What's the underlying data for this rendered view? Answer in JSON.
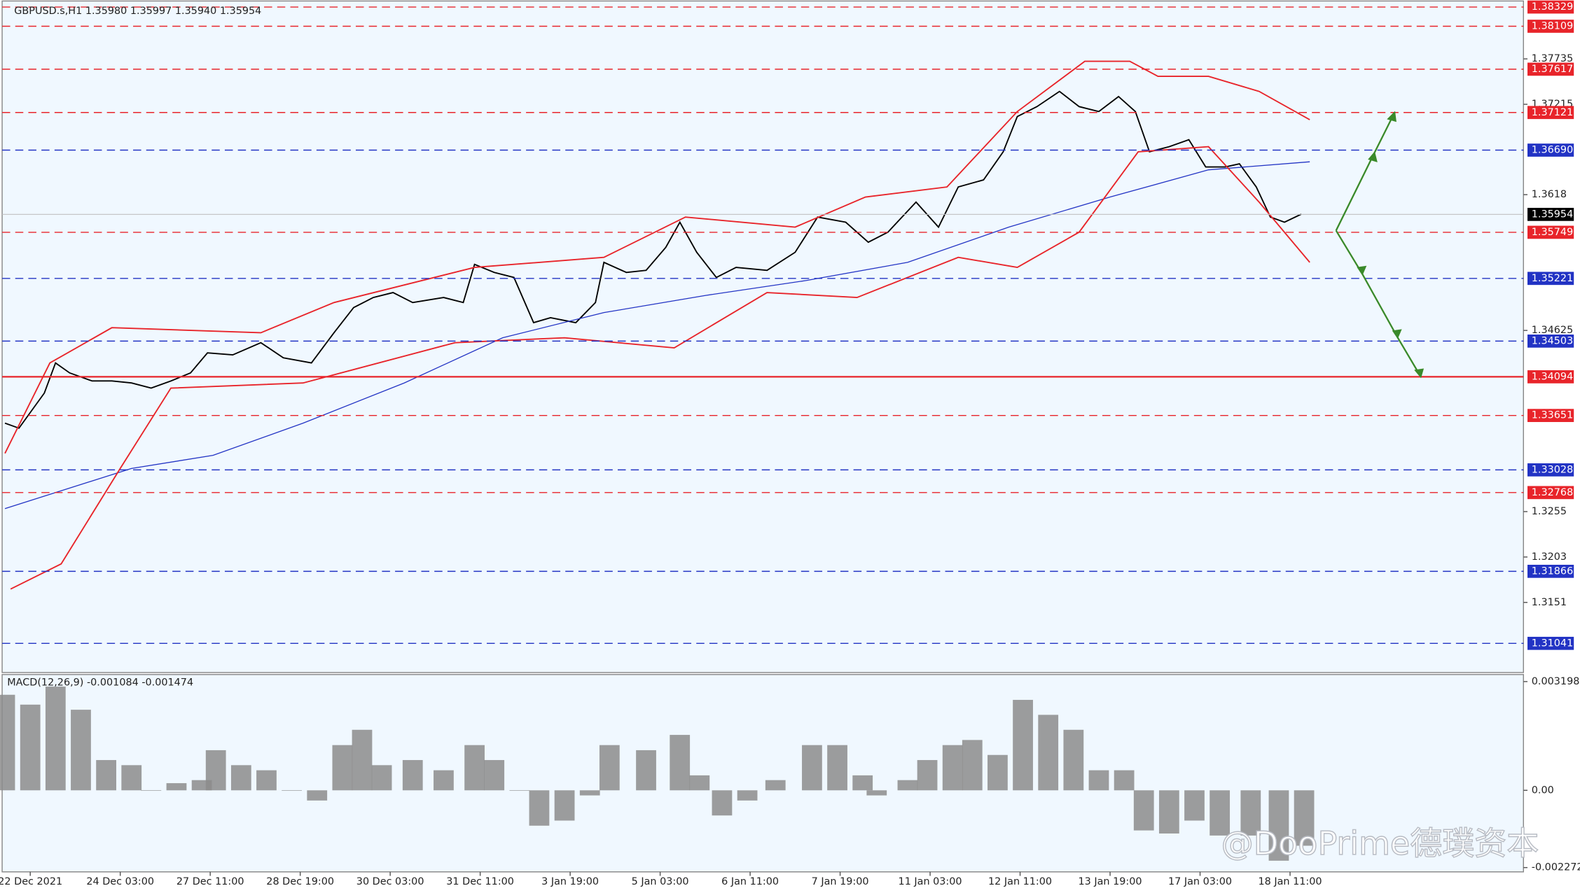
{
  "chart_data": [
    {
      "type": "line",
      "title": "GBPUSD.s,H1  1.35980 1.35997 1.35940 1.35954",
      "xlim": [
        0,
        541
      ],
      "xticks": [
        {
          "value": 10,
          "label": "22 Dec 2021"
        },
        {
          "value": 42,
          "label": "24 Dec 03:00"
        },
        {
          "value": 74,
          "label": "27 Dec 11:00"
        },
        {
          "value": 106,
          "label": "28 Dec 19:00"
        },
        {
          "value": 138,
          "label": "30 Dec 03:00"
        },
        {
          "value": 170,
          "label": "31 Dec 11:00"
        },
        {
          "value": 202,
          "label": "3 Jan 19:00"
        },
        {
          "value": 234,
          "label": "5 Jan 03:00"
        },
        {
          "value": 266,
          "label": "6 Jan 11:00"
        },
        {
          "value": 298,
          "label": "7 Jan 19:00"
        },
        {
          "value": 330,
          "label": "11 Jan 03:00"
        },
        {
          "value": 362,
          "label": "12 Jan 11:00"
        },
        {
          "value": 394,
          "label": "13 Jan 19:00"
        },
        {
          "value": 426,
          "label": "17 Jan 03:00"
        },
        {
          "value": 458,
          "label": "18 Jan 11:00"
        }
      ],
      "ylim": [
        1.30707,
        1.38398
      ],
      "yticks": [
        1.37735,
        1.37215,
        1.3618,
        1.34625,
        1.3255,
        1.3203,
        1.3151
      ],
      "levels": [
        {
          "value": 1.38329,
          "label": "1.38329",
          "color": "#e8242a",
          "dashed": true
        },
        {
          "value": 1.38109,
          "label": "1.38109",
          "color": "#e8242a",
          "dashed": true
        },
        {
          "value": 1.37617,
          "label": "1.37617",
          "color": "#e8242a",
          "dashed": true
        },
        {
          "value": 1.37121,
          "label": "1.37121",
          "color": "#e8242a",
          "dashed": true
        },
        {
          "value": 1.3669,
          "label": "1.36690",
          "color": "#2233c4",
          "dashed": true
        },
        {
          "value": 1.35749,
          "label": "1.35749",
          "color": "#e8242a",
          "dashed": true
        },
        {
          "value": 1.35221,
          "label": "1.35221",
          "color": "#2233c4",
          "dashed": true
        },
        {
          "value": 1.34503,
          "label": "1.34503",
          "color": "#2233c4",
          "dashed": true
        },
        {
          "value": 1.34094,
          "label": "1.34094",
          "color": "#e8242a",
          "dashed": false
        },
        {
          "value": 1.33651,
          "label": "1.33651",
          "color": "#e8242a",
          "dashed": true
        },
        {
          "value": 1.33028,
          "label": "1.33028",
          "color": "#2233c4",
          "dashed": true
        },
        {
          "value": 1.32768,
          "label": "1.32768",
          "color": "#e8242a",
          "dashed": true
        },
        {
          "value": 1.31866,
          "label": "1.31866",
          "color": "#2233c4",
          "dashed": true
        },
        {
          "value": 1.31041,
          "label": "1.31041",
          "color": "#2233c4",
          "dashed": true
        }
      ],
      "current_price": 1.35954,
      "series": [
        {
          "color": "#000000",
          "x": [
            1,
            6,
            15,
            19,
            24,
            32,
            39,
            46,
            53,
            60,
            67,
            73,
            82,
            92,
            100,
            110,
            118,
            125,
            132,
            139,
            146,
            157,
            164,
            168,
            175,
            182,
            189,
            195,
            204,
            211,
            214,
            222,
            229,
            236,
            241,
            247,
            254,
            261,
            272,
            282,
            290,
            300,
            308,
            315,
            325,
            333,
            340,
            349,
            356,
            361,
            368,
            376,
            383,
            390,
            397,
            403,
            408,
            415,
            422,
            428,
            435,
            440,
            446,
            451,
            456,
            462
          ],
          "values": [
            1.33563,
            1.33505,
            1.33908,
            1.34253,
            1.34138,
            1.34046,
            1.34046,
            1.34023,
            1.33965,
            1.34046,
            1.34138,
            1.34368,
            1.34345,
            1.34484,
            1.34311,
            1.34253,
            1.34599,
            1.34887,
            1.35002,
            1.35059,
            1.34944,
            1.35002,
            1.34944,
            1.35382,
            1.35289,
            1.35232,
            1.34714,
            1.34771,
            1.34714,
            1.34944,
            1.35405,
            1.35289,
            1.35313,
            1.35577,
            1.35865,
            1.3552,
            1.35232,
            1.35347,
            1.35313,
            1.3552,
            1.35923,
            1.35865,
            1.35635,
            1.3575,
            1.36095,
            1.35808,
            1.36268,
            1.36349,
            1.36671,
            1.37074,
            1.37189,
            1.37362,
            1.37189,
            1.37132,
            1.37304,
            1.37132,
            1.36671,
            1.36729,
            1.36809,
            1.36498,
            1.36498,
            1.36533,
            1.36268,
            1.35923,
            1.35865,
            1.35957
          ]
        },
        {
          "color": "#2233c4",
          "x": [
            1,
            46,
            75,
            107,
            143,
            178,
            214,
            250,
            286,
            322,
            358,
            394,
            429,
            465
          ],
          "values": [
            1.32584,
            1.33044,
            1.33194,
            1.33563,
            1.34023,
            1.34541,
            1.34829,
            1.35025,
            1.35197,
            1.35405,
            1.35808,
            1.36153,
            1.36464,
            1.36556
          ]
        },
        {
          "color": "#e8242a",
          "x": [
            1,
            17,
            39,
            92,
            118,
            168,
            214,
            243,
            282,
            307,
            336,
            361,
            385,
            401,
            411,
            429,
            447,
            465
          ],
          "values": [
            1.33217,
            1.34253,
            1.34656,
            1.34599,
            1.34944,
            1.35347,
            1.35462,
            1.35923,
            1.35808,
            1.36153,
            1.36268,
            1.37132,
            1.37707,
            1.37707,
            1.37535,
            1.37535,
            1.37362,
            1.37039
          ]
        },
        {
          "color": "#e8242a",
          "x": [
            3,
            21,
            42,
            60,
            107,
            161,
            200,
            239,
            272,
            304,
            340,
            361,
            383,
            404,
            429,
            447,
            465
          ],
          "values": [
            1.31663,
            1.31951,
            1.33044,
            1.33965,
            1.34023,
            1.34484,
            1.34541,
            1.34426,
            1.35059,
            1.35002,
            1.35462,
            1.35347,
            1.3575,
            1.36671,
            1.36729,
            1.36095,
            1.35405
          ]
        }
      ]
    },
    {
      "type": "bar",
      "title": "MACD(12,26,9) -0.001084 -0.001474",
      "xlim": [
        0,
        541
      ],
      "ylim": [
        -0.002398,
        0.003405
      ],
      "yticks": [
        0.003198,
        {
          "value": 0,
          "label": "0.00"
        },
        -0.002272
      ],
      "color": "#8c8c8c",
      "x": [
        1,
        10,
        19,
        28,
        37,
        46,
        53,
        62,
        71,
        76,
        85,
        94,
        103,
        112,
        121,
        128,
        135,
        146,
        157,
        168,
        175,
        184,
        191,
        200,
        209,
        216,
        229,
        241,
        248,
        256,
        265,
        275,
        288,
        297,
        306,
        311,
        322,
        329,
        338,
        345,
        354,
        363,
        372,
        381,
        390,
        399,
        406,
        415,
        424,
        433,
        444,
        454,
        463
      ],
      "values": [
        0.00281,
        0.00252,
        0.00305,
        0.00237,
        0.00089,
        0.00074,
        0,
        0.00021,
        0.0003,
        0.00118,
        0.00074,
        0.00059,
        0,
        -0.0003,
        0.00133,
        0.00178,
        0.00074,
        0.00089,
        0.00059,
        0.00133,
        0.00089,
        0,
        -0.00104,
        -0.00089,
        -0.00015,
        0.00133,
        0.00118,
        0.00163,
        0.00044,
        -0.00074,
        -0.0003,
        0.0003,
        0.00133,
        0.00133,
        0.00044,
        -0.00015,
        0.0003,
        0.00089,
        0.00133,
        0.00148,
        0.00104,
        0.00266,
        0.00222,
        0.00178,
        0.00059,
        0.00059,
        -0.00118,
        -0.00127,
        -0.00089,
        -0.00133,
        -0.00133,
        -0.00207,
        -0.00163
      ]
    }
  ],
  "watermark": "@DooPrime德璞资本"
}
